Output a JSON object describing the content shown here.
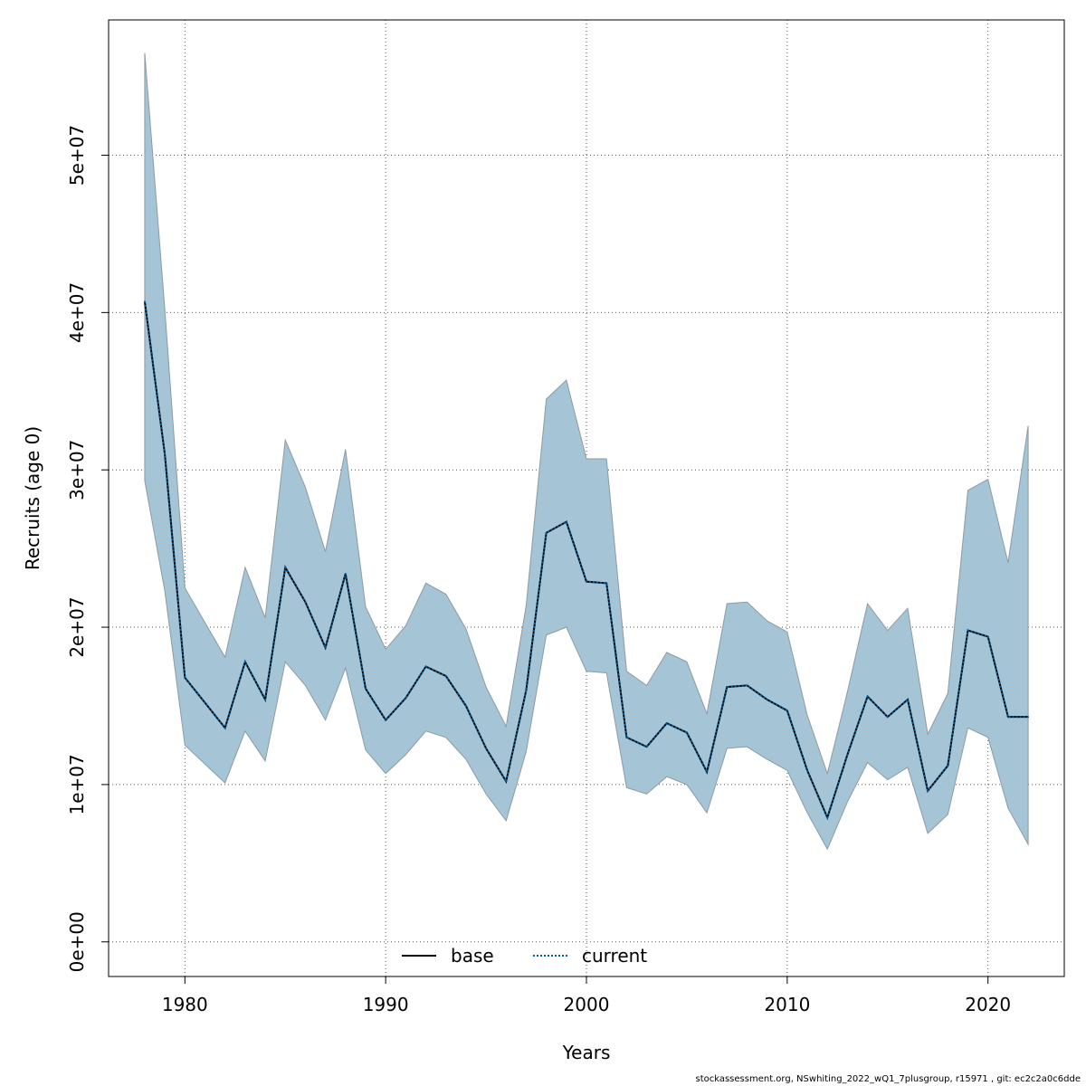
{
  "chart_data": {
    "type": "line",
    "xlabel": "Years",
    "ylabel": "Recruits (age 0)",
    "xlim": [
      1976.2,
      2023.8
    ],
    "ylim": [
      -2200000,
      58600000
    ],
    "x_ticks": [
      1980,
      1990,
      2000,
      2010,
      2020
    ],
    "x_tick_labels": [
      "1980",
      "1990",
      "2000",
      "2010",
      "2020"
    ],
    "y_ticks": [
      0,
      10000000,
      20000000,
      30000000,
      40000000,
      50000000
    ],
    "y_tick_labels": [
      "0e+00",
      "1e+07",
      "2e+07",
      "3e+07",
      "4e+07",
      "5e+07"
    ],
    "grid": true,
    "legend_position": "bottom",
    "legend": [
      {
        "label": "base",
        "style": "solid",
        "color": "#000000"
      },
      {
        "label": "current",
        "style": "dotted",
        "color": "#005b96"
      }
    ],
    "band_color": "#a5c4d6",
    "band_stroke": "#8c9ba4",
    "x": [
      1978,
      1979,
      1980,
      1981,
      1982,
      1983,
      1984,
      1985,
      1986,
      1987,
      1988,
      1989,
      1990,
      1991,
      1992,
      1993,
      1994,
      1995,
      1996,
      1997,
      1998,
      1999,
      2000,
      2001,
      2002,
      2003,
      2004,
      2005,
      2006,
      2007,
      2008,
      2009,
      2010,
      2011,
      2012,
      2013,
      2014,
      2015,
      2016,
      2017,
      2018,
      2019,
      2020,
      2021,
      2022
    ],
    "series": [
      {
        "name": "base",
        "values": [
          40700000,
          31000000,
          16800000,
          15200000,
          13600000,
          17800000,
          15400000,
          23800000,
          21600000,
          18700000,
          23400000,
          16100000,
          14100000,
          15500000,
          17500000,
          16900000,
          15000000,
          12300000,
          10200000,
          16000000,
          26000000,
          26700000,
          22900000,
          22800000,
          13000000,
          12400000,
          13900000,
          13300000,
          10800000,
          16200000,
          16300000,
          15400000,
          14700000,
          10900000,
          7900000,
          11900000,
          15600000,
          14300000,
          15400000,
          9600000,
          11200000,
          19800000,
          19400000,
          14300000,
          14300000
        ]
      },
      {
        "name": "current",
        "values": [
          40700000,
          31000000,
          16800000,
          15200000,
          13600000,
          17800000,
          15400000,
          23800000,
          21600000,
          18700000,
          23400000,
          16100000,
          14100000,
          15500000,
          17500000,
          16900000,
          15000000,
          12300000,
          10200000,
          16000000,
          26000000,
          26700000,
          22900000,
          22800000,
          13000000,
          12400000,
          13900000,
          13300000,
          10800000,
          16200000,
          16300000,
          15400000,
          14700000,
          10900000,
          7900000,
          11900000,
          15600000,
          14300000,
          15400000,
          9600000,
          11200000,
          19800000,
          19400000,
          14300000,
          14300000
        ]
      }
    ],
    "band_upper": [
      56500000,
      40200000,
      22500000,
      20300000,
      18100000,
      23800000,
      20600000,
      31900000,
      28900000,
      24800000,
      31300000,
      21300000,
      18600000,
      20100000,
      22800000,
      22100000,
      19900000,
      16200000,
      13700000,
      21400000,
      34500000,
      35700000,
      30700000,
      30700000,
      17200000,
      16300000,
      18400000,
      17800000,
      14500000,
      21500000,
      21600000,
      20400000,
      19700000,
      14400000,
      10700000,
      15900000,
      21500000,
      19800000,
      21200000,
      13200000,
      15800000,
      28700000,
      29400000,
      24100000,
      32800000
    ],
    "band_lower": [
      29300000,
      22300000,
      12500000,
      11300000,
      10100000,
      13400000,
      11500000,
      17800000,
      16300000,
      14100000,
      17400000,
      12200000,
      10700000,
      11900000,
      13400000,
      13000000,
      11600000,
      9400000,
      7700000,
      12100000,
      19500000,
      20000000,
      17200000,
      17100000,
      9800000,
      9400000,
      10500000,
      10000000,
      8200000,
      12300000,
      12400000,
      11600000,
      10900000,
      8200000,
      5900000,
      8900000,
      11400000,
      10300000,
      11100000,
      6900000,
      8100000,
      13600000,
      13000000,
      8500000,
      6200000
    ]
  },
  "footer": {
    "text": "stockassessment.org, NSwhiting_2022_wQ1_7plusgroup, r15971 , git: ec2c2a0c6dde"
  }
}
